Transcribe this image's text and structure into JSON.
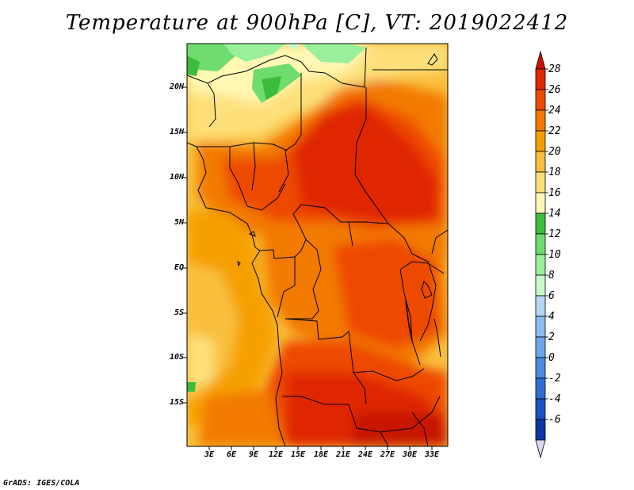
{
  "title": "Temperature at 900hPa [C], VT: 2019022412",
  "credit": "GrADS: IGES/COLA",
  "map": {
    "variable": "Temperature",
    "level": "900hPa",
    "units": "C",
    "valid_time": "2019022412",
    "lat_labels": [
      "20N",
      "15N",
      "10N",
      "5N",
      "EQ",
      "5S",
      "10S",
      "15S"
    ],
    "lon_labels": [
      "3E",
      "6E",
      "9E",
      "12E",
      "15E",
      "18E",
      "21E",
      "24E",
      "27E",
      "30E",
      "33E"
    ]
  },
  "colorbar": {
    "labels": [
      "28",
      "26",
      "24",
      "22",
      "20",
      "18",
      "16",
      "14",
      "12",
      "10",
      "8",
      "6",
      "4",
      "2",
      "0",
      "-2",
      "-4",
      "-6"
    ],
    "colors": [
      "#c81400",
      "#e02800",
      "#ee4a00",
      "#f27a00",
      "#f5a000",
      "#f9bf3c",
      "#fde07a",
      "#fff8b4",
      "#3cbc3c",
      "#6edc6e",
      "#9af09a",
      "#c8fac8",
      "#b4d6f5",
      "#8cbcf0",
      "#6ea4ea",
      "#4a8ae0",
      "#2e6ed6",
      "#1a52c4",
      "#0e36a6",
      "#081a78"
    ]
  }
}
